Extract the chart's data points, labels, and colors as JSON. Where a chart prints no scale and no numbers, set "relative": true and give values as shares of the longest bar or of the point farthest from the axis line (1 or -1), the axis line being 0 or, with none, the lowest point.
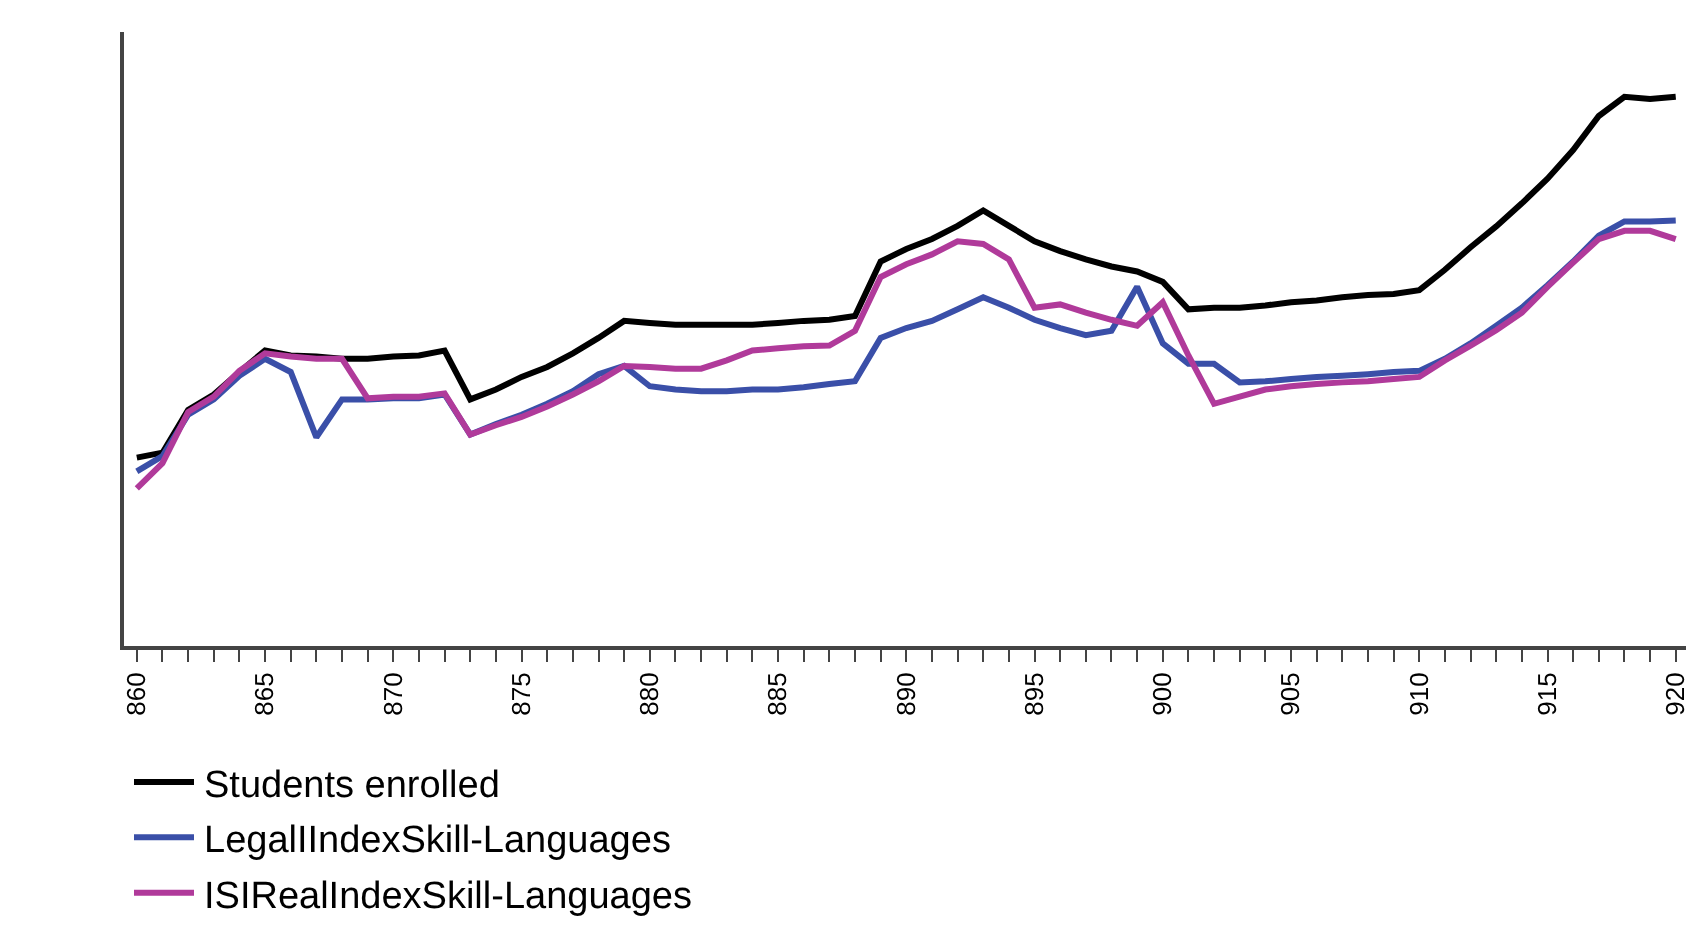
{
  "chart_data": {
    "type": "line",
    "relative": true,
    "categories": [
      "860",
      null,
      null,
      null,
      null,
      "865",
      null,
      null,
      null,
      null,
      "870",
      null,
      null,
      null,
      null,
      "875",
      null,
      null,
      null,
      null,
      "880",
      null,
      null,
      null,
      null,
      "885",
      null,
      null,
      null,
      null,
      "890",
      null,
      null,
      null,
      null,
      "895",
      null,
      null,
      null,
      null,
      "900",
      null,
      null,
      null,
      null,
      "905",
      null,
      null,
      null,
      null,
      "910",
      null,
      null,
      null,
      null,
      "915",
      null,
      null,
      null,
      null,
      "920"
    ],
    "series": [
      {
        "name": "Students enrolled",
        "color": "#000000",
        "values": [
          0.343,
          0.352,
          0.43,
          0.458,
          0.499,
          0.538,
          0.529,
          0.527,
          0.523,
          0.523,
          0.527,
          0.529,
          0.538,
          0.449,
          0.467,
          0.49,
          0.508,
          0.533,
          0.561,
          0.592,
          0.588,
          0.585,
          0.585,
          0.585,
          0.585,
          0.588,
          0.592,
          0.594,
          0.601,
          0.7,
          0.723,
          0.741,
          0.765,
          0.793,
          0.765,
          0.737,
          0.719,
          0.704,
          0.691,
          0.682,
          0.663,
          0.613,
          0.616,
          0.616,
          0.62,
          0.626,
          0.629,
          0.635,
          0.639,
          0.641,
          0.648,
          0.685,
          0.726,
          0.764,
          0.806,
          0.851,
          0.903,
          0.965,
          1,
          0.996,
          1
        ]
      },
      {
        "name": "LegalIIndexSkill-Languages",
        "color": "#3a4fa8",
        "values": [
          0.318,
          0.346,
          0.421,
          0.449,
          0.492,
          0.523,
          0.499,
          0.38,
          0.449,
          0.449,
          0.451,
          0.451,
          0.458,
          0.385,
          0.404,
          0.421,
          0.441,
          0.464,
          0.495,
          0.51,
          0.473,
          0.467,
          0.464,
          0.464,
          0.467,
          0.467,
          0.471,
          0.477,
          0.482,
          0.561,
          0.579,
          0.592,
          0.613,
          0.635,
          0.616,
          0.594,
          0.579,
          0.566,
          0.574,
          0.654,
          0.551,
          0.514,
          0.514,
          0.48,
          0.482,
          0.486,
          0.49,
          0.492,
          0.495,
          0.499,
          0.501,
          0.523,
          0.551,
          0.583,
          0.616,
          0.657,
          0.7,
          0.747,
          0.773,
          0.773,
          0.775
        ]
      },
      {
        "name": "ISIRealIndexSkill-Languages",
        "color": "#b03a9a",
        "values": [
          0.287,
          0.333,
          0.426,
          0.454,
          0.501,
          0.533,
          0.527,
          0.523,
          0.523,
          0.451,
          0.454,
          0.454,
          0.46,
          0.385,
          0.402,
          0.417,
          0.436,
          0.458,
          0.482,
          0.51,
          0.508,
          0.505,
          0.505,
          0.52,
          0.538,
          0.542,
          0.546,
          0.547,
          0.574,
          0.672,
          0.695,
          0.713,
          0.737,
          0.732,
          0.704,
          0.616,
          0.622,
          0.607,
          0.594,
          0.583,
          0.626,
          0.529,
          0.441,
          0.454,
          0.467,
          0.473,
          0.477,
          0.48,
          0.482,
          0.486,
          0.49,
          0.52,
          0.547,
          0.575,
          0.607,
          0.654,
          0.698,
          0.741,
          0.756,
          0.756,
          0.741
        ]
      }
    ],
    "legend": "bottom",
    "marker": "none",
    "line_style": "solid"
  }
}
